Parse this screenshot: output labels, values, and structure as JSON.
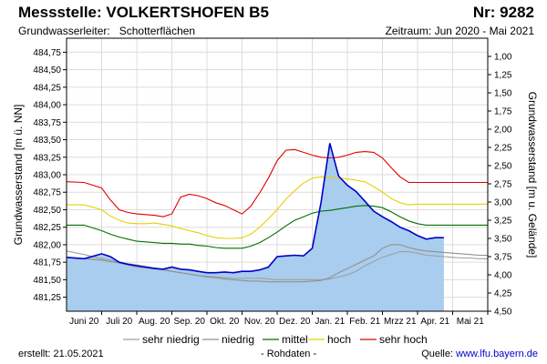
{
  "header": {
    "title": "Messstelle: VOLKERTSHOFEN B5",
    "nr": "Nr: 9282",
    "aquifer_label": "Grundwasserleiter:",
    "aquifer_value": "Schotterflächen",
    "period": "Zeitraum: Jun 2020 - Mai 2021"
  },
  "footer": {
    "created_label": "erstellt:",
    "created_date": "21.05.2021",
    "note": "- Rohdaten -",
    "source_label": "Quelle:",
    "source_url": "www.lfu.bayern.de"
  },
  "chart_data": {
    "type": "area",
    "ylabel_left": "Grundwasserstand [m ü. NN]",
    "ylabel_right": "Grundwasserstand [m u. Gelände]",
    "ylim_left": [
      481.05,
      484.95
    ],
    "ylim_right": [
      4.5,
      0.75
    ],
    "yticks_left": [
      "481,25",
      "481,50",
      "481,75",
      "482,00",
      "482,25",
      "482,50",
      "482,75",
      "483,00",
      "483,25",
      "483,50",
      "483,75",
      "484,00",
      "484,25",
      "484,50",
      "484,75"
    ],
    "yticks_right": [
      "1,00",
      "1,25",
      "1,50",
      "1,75",
      "2,00",
      "2,25",
      "2,50",
      "2,75",
      "3,00",
      "3,25",
      "3,50",
      "3,75",
      "4,00",
      "4,25",
      "4,50"
    ],
    "xticks": [
      "Juni 20",
      "Juli 20",
      "Aug. 20",
      "Sep. 20",
      "Okt. 20",
      "Nov. 20",
      "Dez. 20",
      "Jan. 21",
      "Feb. 21",
      "Mrzz 21",
      "Apr. 21",
      "Mai 21"
    ],
    "grid": true,
    "x": [
      0,
      0.5,
      1,
      1.25,
      1.5,
      1.75,
      2,
      2.25,
      2.5,
      2.75,
      3,
      3.25,
      3.5,
      3.75,
      4,
      4.25,
      4.5,
      4.75,
      5,
      5.25,
      5.5,
      5.75,
      6,
      6.25,
      6.5,
      6.75,
      7,
      7.25,
      7.5,
      7.75,
      8,
      8.25,
      8.5,
      8.75,
      9,
      9.25,
      9.5,
      9.75,
      10,
      10.25,
      10.5,
      10.75,
      11,
      11.25,
      11.5,
      11.75,
      12
    ],
    "series": [
      {
        "name": "sehr niedrig",
        "color": "#a0a0a0",
        "values": [
          481.91,
          481.86,
          481.8,
          481.78,
          481.75,
          481.73,
          481.71,
          481.69,
          481.67,
          481.65,
          481.62,
          481.6,
          481.58,
          481.56,
          481.55,
          481.54,
          481.53,
          481.52,
          481.52,
          481.52,
          481.52,
          481.51,
          481.5,
          481.5,
          481.5,
          481.5,
          481.5,
          481.5,
          481.51,
          481.54,
          481.57,
          481.62,
          481.7,
          481.76,
          481.82,
          481.86,
          481.9,
          481.9,
          481.88,
          481.85,
          481.84,
          481.83,
          481.82,
          481.81,
          481.81,
          481.8,
          481.8
        ]
      },
      {
        "name": "niedrig",
        "color": "#909090",
        "values": [
          481.82,
          481.8,
          481.78,
          481.76,
          481.74,
          481.71,
          481.68,
          481.67,
          481.66,
          481.64,
          481.62,
          481.6,
          481.58,
          481.56,
          481.54,
          481.53,
          481.51,
          481.5,
          481.49,
          481.48,
          481.48,
          481.47,
          481.47,
          481.47,
          481.47,
          481.47,
          481.48,
          481.49,
          481.53,
          481.6,
          481.66,
          481.72,
          481.78,
          481.84,
          481.95,
          482.0,
          482.0,
          481.96,
          481.93,
          481.91,
          481.9,
          481.89,
          481.88,
          481.87,
          481.86,
          481.85,
          481.85
        ]
      },
      {
        "name": "mittel",
        "color": "#007000",
        "values": [
          482.28,
          482.28,
          482.2,
          482.15,
          482.11,
          482.08,
          482.05,
          482.04,
          482.03,
          482.02,
          482.02,
          482.01,
          482.01,
          481.99,
          481.98,
          481.96,
          481.95,
          481.95,
          481.95,
          481.98,
          482.03,
          482.1,
          482.18,
          482.27,
          482.35,
          482.4,
          482.45,
          482.48,
          482.49,
          482.51,
          482.53,
          482.55,
          482.56,
          482.55,
          482.53,
          482.47,
          482.4,
          482.34,
          482.3,
          482.28,
          482.28,
          482.28,
          482.28,
          482.28,
          482.28,
          482.28,
          482.28
        ]
      },
      {
        "name": "hoch",
        "color": "#e6d000",
        "values": [
          482.57,
          482.57,
          482.5,
          482.41,
          482.35,
          482.31,
          482.3,
          482.3,
          482.31,
          482.29,
          482.27,
          482.23,
          482.2,
          482.17,
          482.13,
          482.1,
          482.09,
          482.09,
          482.1,
          482.15,
          482.25,
          482.37,
          482.5,
          482.65,
          482.77,
          482.88,
          482.95,
          482.97,
          482.96,
          482.95,
          482.94,
          482.92,
          482.9,
          482.83,
          482.75,
          482.66,
          482.6,
          482.57,
          482.58,
          482.58,
          482.58,
          482.58,
          482.58,
          482.58,
          482.58,
          482.58,
          482.58
        ]
      },
      {
        "name": "sehr hoch",
        "color": "#e00000",
        "values": [
          482.9,
          482.89,
          482.81,
          482.64,
          482.5,
          482.46,
          482.44,
          482.43,
          482.42,
          482.4,
          482.44,
          482.68,
          482.72,
          482.7,
          482.66,
          482.6,
          482.56,
          482.5,
          482.44,
          482.55,
          482.74,
          482.95,
          483.2,
          483.35,
          483.36,
          483.32,
          483.28,
          483.25,
          483.24,
          483.25,
          483.28,
          483.32,
          483.33,
          483.32,
          483.24,
          483.1,
          482.97,
          482.89,
          482.89,
          482.89,
          482.89,
          482.89,
          482.89,
          482.89,
          482.89,
          482.89,
          482.89
        ]
      },
      {
        "name": "",
        "color": "#0000c8",
        "fill": "#a8cdee",
        "values": [
          481.82,
          481.8,
          481.87,
          481.83,
          481.75,
          481.72,
          481.7,
          481.68,
          481.66,
          481.65,
          481.68,
          481.65,
          481.64,
          481.62,
          481.6,
          481.6,
          481.61,
          481.6,
          481.62,
          481.62,
          481.64,
          481.68,
          481.83,
          481.84,
          481.85,
          481.84,
          481.95,
          482.6,
          483.45,
          482.98,
          482.85,
          482.76,
          482.62,
          482.48,
          482.4,
          482.33,
          482.25,
          482.2,
          482.13,
          482.08,
          482.1,
          482.1,
          null,
          null,
          null,
          null,
          null
        ]
      }
    ],
    "legend": {
      "position": "bottom",
      "entries": [
        "sehr niedrig",
        "niedrig",
        "mittel",
        "hoch",
        "sehr hoch"
      ]
    }
  }
}
